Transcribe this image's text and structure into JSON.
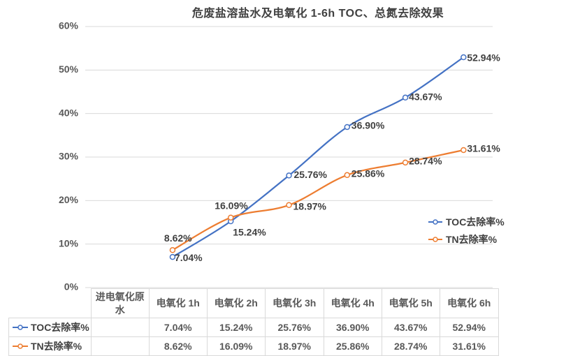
{
  "chart_data": {
    "type": "line",
    "title": "危废盐溶盐水及电氧化 1-6h TOC、总氮去除效果",
    "categories": [
      "进电氧化原水",
      "电氧化 1h",
      "电氧化 2h",
      "电氧化 3h",
      "电氧化 4h",
      "电氧化 5h",
      "电氧化 6h"
    ],
    "series": [
      {
        "name": "TOC去除率%",
        "color": "#4472C4",
        "values": [
          null,
          7.04,
          15.24,
          25.76,
          36.9,
          43.67,
          52.94
        ],
        "labels": [
          "",
          "7.04%",
          "15.24%",
          "25.76%",
          "36.90%",
          "43.67%",
          "52.94%"
        ],
        "label_offsets": [
          null,
          [
            3,
            2
          ],
          [
            3,
            17
          ],
          [
            7,
            0
          ],
          [
            6,
            -1
          ],
          [
            5,
            0
          ],
          [
            5,
            2
          ]
        ]
      },
      {
        "name": "TN去除率%",
        "color": "#ED7D31",
        "values": [
          null,
          8.62,
          16.09,
          18.97,
          25.86,
          28.74,
          31.61
        ],
        "labels": [
          "",
          "8.62%",
          "16.09%",
          "18.97%",
          "25.86%",
          "28.74%",
          "31.61%"
        ],
        "label_offsets": [
          null,
          [
            -12,
            -16
          ],
          [
            -23,
            -16
          ],
          [
            6,
            3
          ],
          [
            6,
            -1
          ],
          [
            5,
            -1
          ],
          [
            5,
            -1
          ]
        ]
      }
    ],
    "y_axis": {
      "ticks": [
        "0%",
        "10%",
        "20%",
        "30%",
        "40%",
        "50%",
        "60%"
      ],
      "min": 0,
      "max": 60,
      "unit": "%"
    },
    "legend_position": "right-middle",
    "grid": true,
    "marker": "open-circle",
    "data_table_shown": true
  },
  "colors": {
    "toc_series": "#4472C4",
    "tn_series": "#ED7D31",
    "gridline": "#D9D9D9",
    "axis_text": "#595959",
    "data_label_text": "#404040",
    "table_border": "#D9D9D9",
    "table_text": "#595959",
    "title_text": "#404040",
    "background": "#FFFFFF"
  }
}
